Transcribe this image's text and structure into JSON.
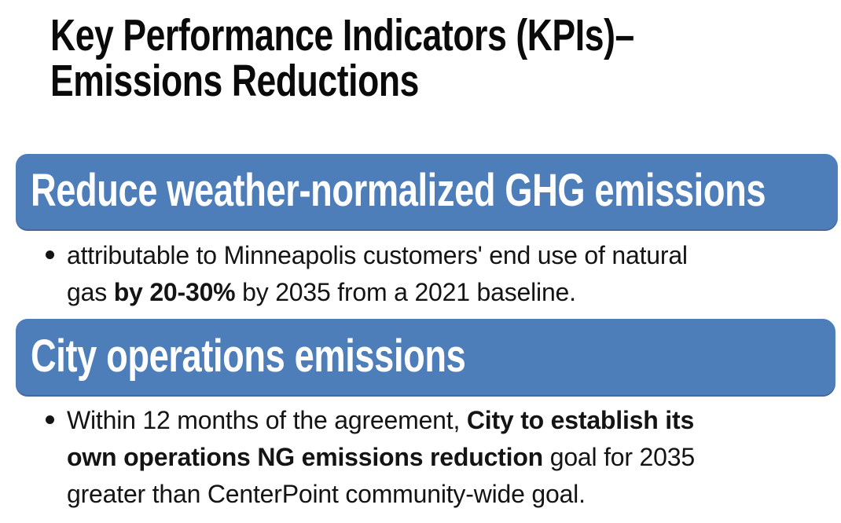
{
  "title": {
    "line1": "Key Performance Indicators (KPIs)–",
    "line2": "Emissions Reductions"
  },
  "sections": [
    {
      "banner_label": "Reduce weather-normalized GHG emissions",
      "bullet": {
        "lines": [
          {
            "segments": [
              {
                "text": "attributable to Minneapolis customers' end use of natural",
                "bold": false
              }
            ]
          },
          {
            "segments": [
              {
                "text": "gas ",
                "bold": false
              },
              {
                "text": "by 20-30%",
                "bold": true
              },
              {
                "text": " by 2035 from a 2021 baseline.",
                "bold": false
              }
            ]
          }
        ]
      }
    },
    {
      "banner_label": "City operations emissions",
      "bullet": {
        "lines": [
          {
            "segments": [
              {
                "text": "Within 12 months of the agreement, ",
                "bold": false
              },
              {
                "text": "City to establish its",
                "bold": true
              }
            ]
          },
          {
            "segments": [
              {
                "text": "own operations NG emissions reduction",
                "bold": true
              },
              {
                "text": " goal for 2035",
                "bold": false
              }
            ]
          },
          {
            "segments": [
              {
                "text": "greater than CenterPoint community-wide goal.",
                "bold": false
              }
            ]
          }
        ]
      }
    }
  ],
  "colors": {
    "page_background": "#FFFFFF",
    "banner_background": "#4E7EBA",
    "banner_bottom_edge": "#44699C",
    "banner_text": "#FFFFFF",
    "title_text": "#0A0A0A",
    "body_text": "#141414"
  }
}
